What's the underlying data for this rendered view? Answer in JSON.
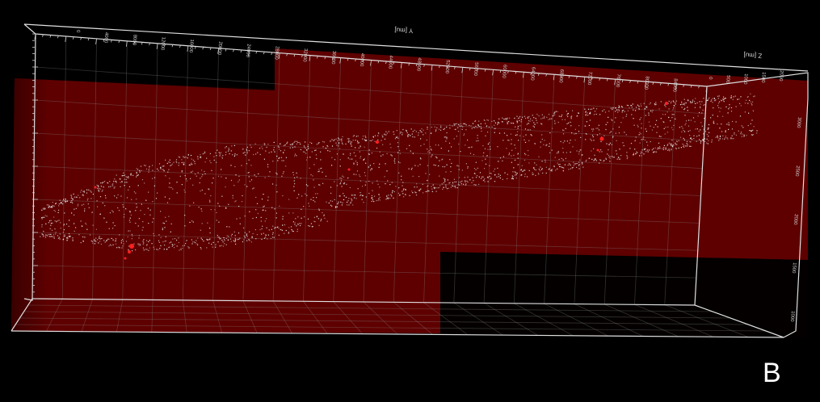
{
  "panel_label": "B",
  "axes": {
    "y_axis_title": "Y [mu]",
    "z_axis_title": "Z [mu]",
    "y_ticks": [
      "0",
      "4000",
      "8000",
      "12000",
      "16000",
      "20000",
      "24000",
      "28000",
      "32000",
      "36000",
      "40000",
      "44000",
      "48000",
      "52000",
      "56000",
      "60000",
      "64000",
      "68000",
      "72000",
      "76000",
      "80000",
      "84000"
    ],
    "z_ticks": [
      "0",
      "500",
      "1000",
      "1500",
      "2000"
    ],
    "x_ticks": [
      "3000",
      "2500",
      "2000",
      "1500",
      "1000"
    ]
  },
  "colors": {
    "background": "#000000",
    "volume_fill": "#5e0000",
    "volume_dark": "#2e0000",
    "point_cloud": "#e6e6e6",
    "highlight_spots": "#ff2020",
    "bounding_box": "#e0e0e0",
    "grid": "#8a8a8a"
  },
  "scene": {
    "view": "3D volume rendering",
    "object": "point cloud",
    "bounding_box": true,
    "grid": true
  }
}
